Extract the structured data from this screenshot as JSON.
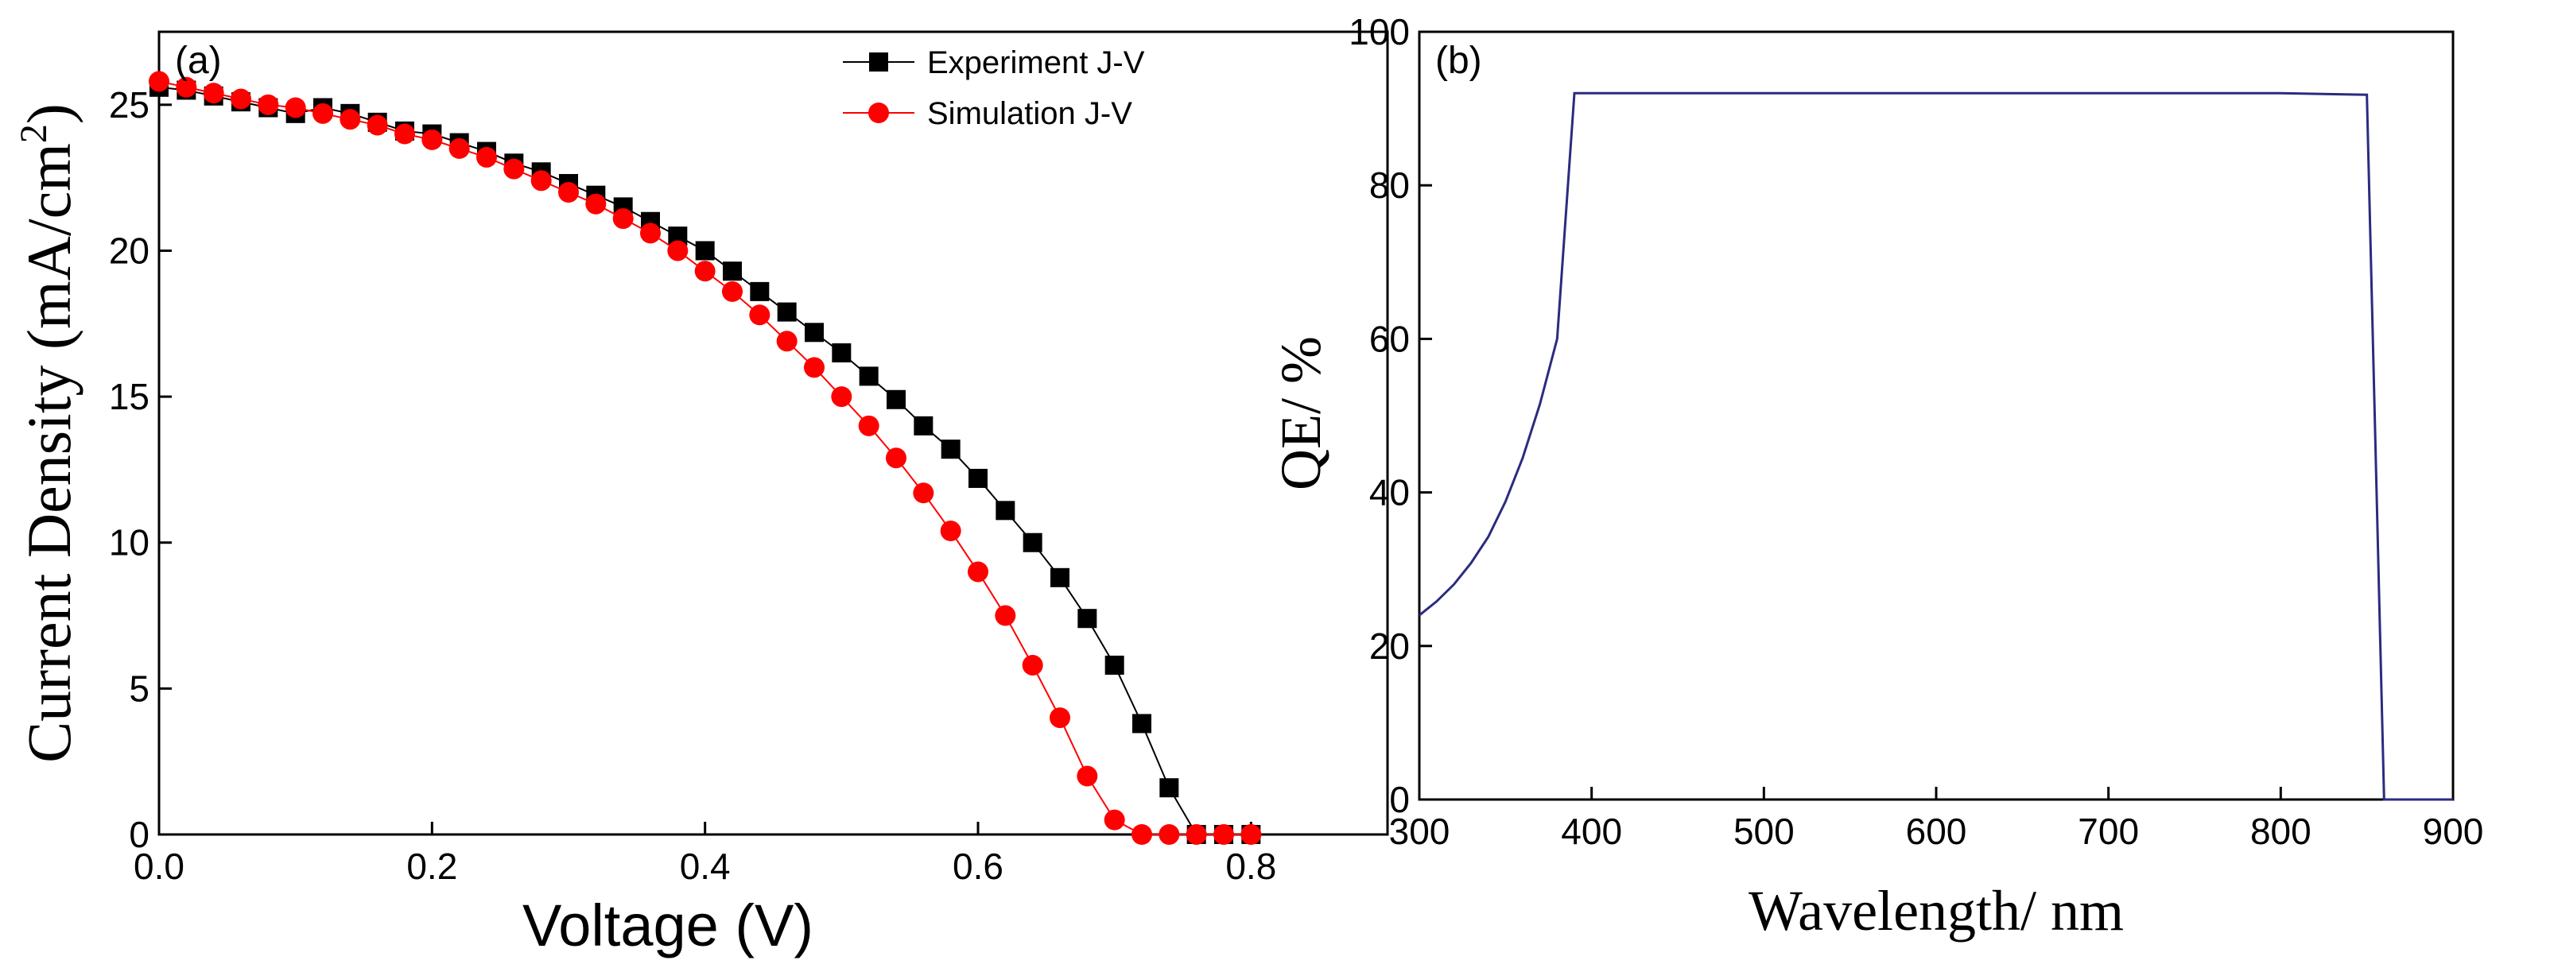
{
  "chart_data": [
    {
      "type": "line",
      "panel_label": "(a)",
      "xlabel": "Voltage (V)",
      "ylabel": "Current Density (mA/cm",
      "ylabel_sup": "2",
      "ylabel_close": ")",
      "xlim": [
        0.0,
        0.9
      ],
      "ylim": [
        0,
        27.5
      ],
      "xticks": [
        "0.0",
        "0.2",
        "0.4",
        "0.6",
        "0.8"
      ],
      "xtick_values": [
        0.0,
        0.2,
        0.4,
        0.6,
        0.8
      ],
      "yticks": [
        "0",
        "5",
        "10",
        "15",
        "20",
        "25"
      ],
      "ytick_values": [
        0,
        5,
        10,
        15,
        20,
        25
      ],
      "legend_position": "top-right",
      "series": [
        {
          "name": "Experiment J-V",
          "color": "#000000",
          "marker": "square",
          "x": [
            0.0,
            0.02,
            0.04,
            0.06,
            0.08,
            0.1,
            0.12,
            0.14,
            0.16,
            0.18,
            0.2,
            0.22,
            0.24,
            0.26,
            0.28,
            0.3,
            0.32,
            0.34,
            0.36,
            0.38,
            0.4,
            0.42,
            0.44,
            0.46,
            0.48,
            0.5,
            0.52,
            0.54,
            0.56,
            0.58,
            0.6,
            0.62,
            0.64,
            0.66,
            0.68,
            0.7,
            0.72,
            0.74,
            0.76,
            0.78,
            0.8
          ],
          "values": [
            25.6,
            25.5,
            25.3,
            25.1,
            24.9,
            24.7,
            24.9,
            24.7,
            24.4,
            24.1,
            24.0,
            23.7,
            23.4,
            23.0,
            22.7,
            22.3,
            21.9,
            21.5,
            21.0,
            20.5,
            20.0,
            19.3,
            18.6,
            17.9,
            17.2,
            16.5,
            15.7,
            14.9,
            14.0,
            13.2,
            12.2,
            11.1,
            10.0,
            8.8,
            7.4,
            5.8,
            3.8,
            1.6,
            0.0,
            0.0,
            0.0
          ]
        },
        {
          "name": "Simulation  J-V",
          "color": "#ff0000",
          "marker": "circle",
          "x": [
            0.0,
            0.02,
            0.04,
            0.06,
            0.08,
            0.1,
            0.12,
            0.14,
            0.16,
            0.18,
            0.2,
            0.22,
            0.24,
            0.26,
            0.28,
            0.3,
            0.32,
            0.34,
            0.36,
            0.38,
            0.4,
            0.42,
            0.44,
            0.46,
            0.48,
            0.5,
            0.52,
            0.54,
            0.56,
            0.58,
            0.6,
            0.62,
            0.64,
            0.66,
            0.68,
            0.7,
            0.72,
            0.74,
            0.76,
            0.78,
            0.8
          ],
          "values": [
            25.8,
            25.6,
            25.4,
            25.2,
            25.0,
            24.9,
            24.7,
            24.5,
            24.3,
            24.0,
            23.8,
            23.5,
            23.2,
            22.8,
            22.4,
            22.0,
            21.6,
            21.1,
            20.6,
            20.0,
            19.3,
            18.6,
            17.8,
            16.9,
            16.0,
            15.0,
            14.0,
            12.9,
            11.7,
            10.4,
            9.0,
            7.5,
            5.8,
            4.0,
            2.0,
            0.5,
            0.0,
            0.0,
            0.0,
            0.0,
            0.0
          ]
        }
      ]
    },
    {
      "type": "line",
      "panel_label": "(b)",
      "xlabel": "Wavelength/ nm",
      "ylabel": "QE/ %",
      "xlim": [
        300,
        900
      ],
      "ylim": [
        0,
        100
      ],
      "xticks": [
        "300",
        "400",
        "500",
        "600",
        "700",
        "800",
        "900"
      ],
      "xtick_values": [
        300,
        400,
        500,
        600,
        700,
        800,
        900
      ],
      "yticks": [
        "0",
        "20",
        "40",
        "60",
        "80",
        "100"
      ],
      "ytick_values": [
        0,
        20,
        40,
        60,
        80,
        100
      ],
      "series": [
        {
          "name": "QE",
          "color": "#2b2b80",
          "x": [
            300,
            310,
            320,
            330,
            340,
            350,
            360,
            370,
            380,
            390,
            500,
            600,
            700,
            800,
            850,
            860,
            900
          ],
          "values": [
            24.0,
            25.8,
            28.0,
            30.8,
            34.2,
            38.8,
            44.5,
            51.5,
            60.0,
            92.0,
            92.0,
            92.0,
            92.0,
            92.0,
            91.8,
            0.0,
            0.0
          ]
        }
      ]
    }
  ]
}
